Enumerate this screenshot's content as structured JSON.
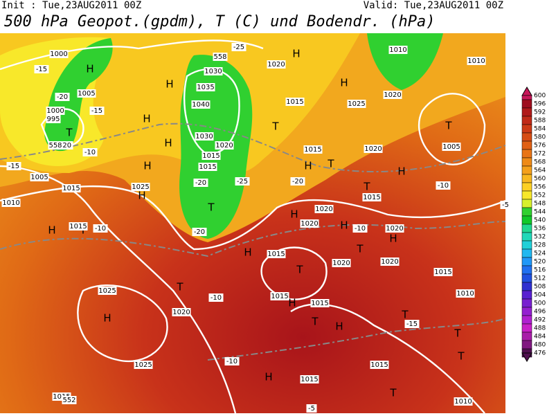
{
  "header": {
    "init": "Init : Tue,23AUG2011 00Z",
    "valid": "Valid: Tue,23AUG2011 00Z",
    "title": "500 hPa Geopot.(gpdm), T (C) und Bodendr. (hPa)"
  },
  "colorbar": {
    "labels": [
      600,
      596,
      592,
      588,
      584,
      580,
      576,
      572,
      568,
      564,
      560,
      556,
      552,
      548,
      544,
      540,
      536,
      532,
      528,
      524,
      520,
      516,
      512,
      508,
      504,
      500,
      496,
      492,
      488,
      484,
      480,
      476
    ],
    "colors": [
      "#c8175a",
      "#9e0e1e",
      "#b01a1a",
      "#c02a18",
      "#cc3a16",
      "#d64c14",
      "#e06014",
      "#e87416",
      "#ee8a18",
      "#f4a01c",
      "#f8b820",
      "#fcd024",
      "#f8e82a",
      "#d8f02c",
      "#30d030",
      "#10c828",
      "#20d890",
      "#20d8b8",
      "#20d0d8",
      "#20b8f0",
      "#2098f8",
      "#2070f0",
      "#2050e0",
      "#3030d0",
      "#5820d0",
      "#7820d0",
      "#9420d0",
      "#b020d0",
      "#c820c8",
      "#a81ea8",
      "#801880",
      "#501050"
    ]
  },
  "map": {
    "labels": [
      "H",
      "H",
      "H",
      "H",
      "H",
      "H",
      "H",
      "H",
      "H",
      "H",
      "H",
      "H",
      "H",
      "H",
      "H",
      "H",
      "H",
      "H",
      "H",
      "T",
      "T",
      "T",
      "T",
      "T",
      "T",
      "T",
      "T",
      "T",
      "T",
      "T",
      "T",
      "T",
      "T",
      "T",
      "1000",
      "1005",
      "1000",
      "995",
      "1005",
      "1015",
      "1010",
      "1025",
      "1015",
      "1030",
      "1035",
      "1040",
      "1030",
      "1020",
      "1015",
      "1015",
      "1020",
      "1015",
      "1015",
      "1020",
      "1025",
      "1015",
      "1020",
      "1020",
      "1015",
      "1020",
      "1020",
      "1020",
      "1015",
      "1015",
      "1025",
      "1020",
      "1025",
      "1015",
      "1015",
      "1015",
      "1010",
      "1010",
      "1010",
      "1005",
      "1015",
      "1010",
      "1020",
      "-15",
      "-20",
      "-10",
      "-15",
      "-20",
      "-25",
      "-20",
      "-20",
      "-25",
      "-20",
      "-15",
      "-10",
      "-10",
      "-10",
      "-10",
      "-15",
      "-10",
      "-5",
      "-5",
      "552",
      "558",
      "558"
    ]
  }
}
